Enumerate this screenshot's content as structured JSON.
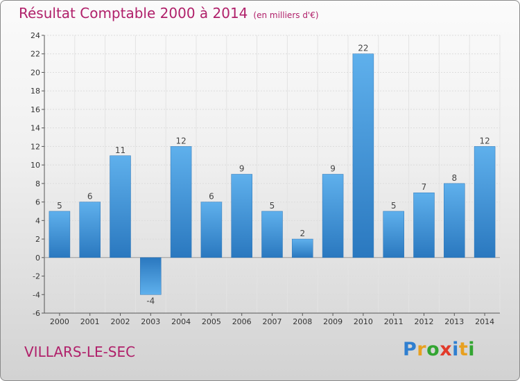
{
  "title": "Résultat Comptable 2000 à 2014",
  "subtitle": "(en milliers d'€)",
  "commune": "VILLARS-LE-SEC",
  "logo": {
    "letters": [
      "P",
      "r",
      "o",
      "x",
      "i",
      "t",
      "i"
    ],
    "colors": [
      "#2f7fd0",
      "#e8a020",
      "#33a532",
      "#e23a2a",
      "#2f7fd0",
      "#e8a020",
      "#33a532"
    ]
  },
  "chart_data": {
    "type": "bar",
    "categories": [
      "2000",
      "2001",
      "2002",
      "2003",
      "2004",
      "2005",
      "2006",
      "2007",
      "2008",
      "2009",
      "2010",
      "2011",
      "2012",
      "2013",
      "2014"
    ],
    "values": [
      5,
      6,
      11,
      -4,
      12,
      6,
      9,
      5,
      2,
      9,
      22,
      5,
      7,
      8,
      12
    ],
    "ylim": [
      -6,
      24
    ],
    "yticks": [
      -6,
      -4,
      -2,
      0,
      2,
      4,
      6,
      8,
      10,
      12,
      14,
      16,
      18,
      20,
      22,
      24
    ],
    "grid": true,
    "bar_color": "#3a8fd6"
  }
}
